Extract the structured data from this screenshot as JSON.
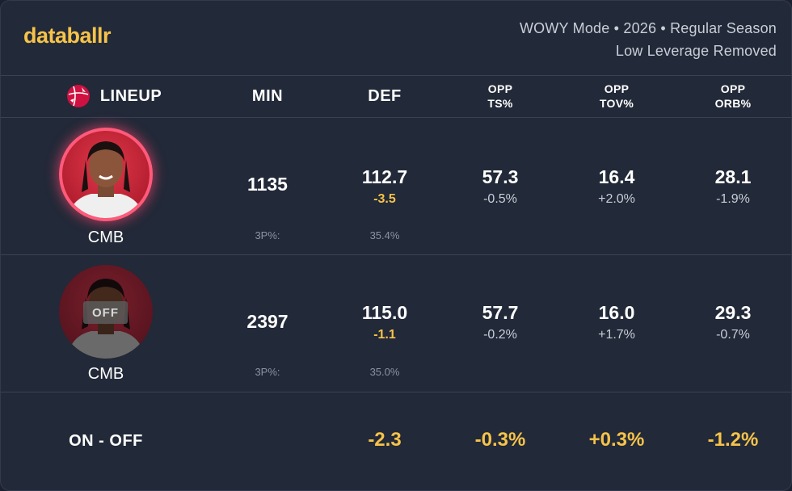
{
  "header": {
    "logo": "databallr",
    "meta_line1": "WOWY Mode • 2026 • Regular Season",
    "meta_line2": "Low Leverage Removed"
  },
  "columns": {
    "lineup": "LINEUP",
    "min": "MIN",
    "def": "DEF",
    "opp_ts_1": "OPP",
    "opp_ts_2": "TS%",
    "opp_tov_1": "OPP",
    "opp_tov_2": "TOV%",
    "opp_orb_1": "OPP",
    "opp_orb_2": "ORB%"
  },
  "rows": [
    {
      "player": "CMB",
      "status": "ON",
      "min": "1135",
      "def": "112.7",
      "def_delta": "-3.5",
      "ts": "57.3",
      "ts_delta": "-0.5%",
      "tov": "16.4",
      "tov_delta": "+2.0%",
      "orb": "28.1",
      "orb_delta": "-1.9%",
      "threep_label": "3P%:",
      "threep": "35.4%"
    },
    {
      "player": "CMB",
      "status": "OFF",
      "badge": "OFF",
      "min": "2397",
      "def": "115.0",
      "def_delta": "-1.1",
      "ts": "57.7",
      "ts_delta": "-0.2%",
      "tov": "16.0",
      "tov_delta": "+1.7%",
      "orb": "29.3",
      "orb_delta": "-0.7%",
      "threep_label": "3P%:",
      "threep": "35.0%"
    }
  ],
  "summary": {
    "label": "ON - OFF",
    "def": "-2.3",
    "ts": "-0.3%",
    "tov": "+0.3%",
    "orb": "-1.2%"
  },
  "colors": {
    "accent": "#f6c34a",
    "background": "#222938",
    "team": "#ce1141"
  },
  "icons": {
    "team_logo": "raptors-basketball-icon",
    "avatar": "player-avatar"
  }
}
